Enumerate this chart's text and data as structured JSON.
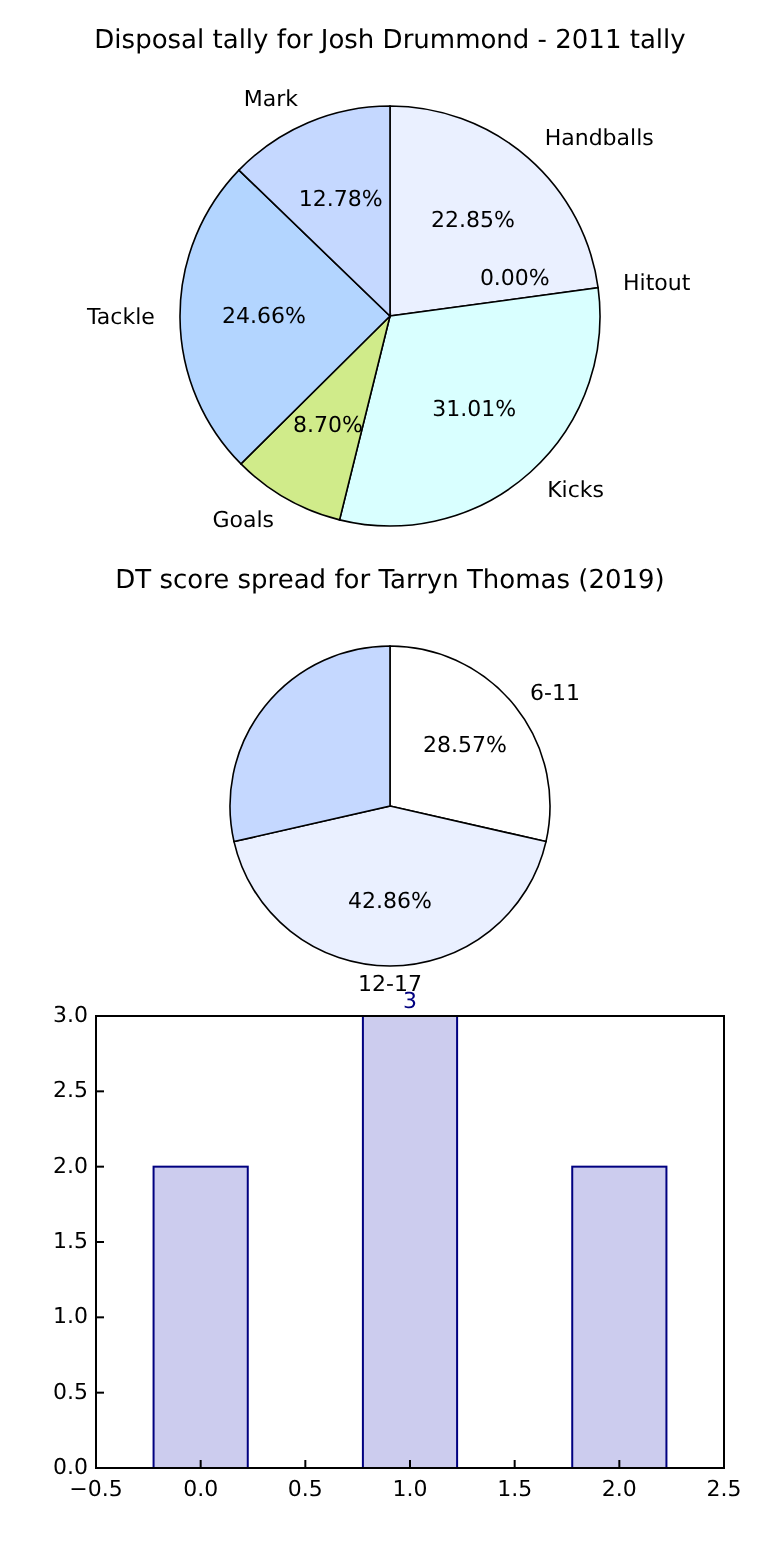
{
  "chart_data": [
    {
      "type": "pie",
      "title": "Disposal tally for Josh Drummond - 2011 tally",
      "categories": [
        "Handballs",
        "Hitout",
        "Kicks",
        "Goals",
        "Tackle",
        "Mark"
      ],
      "values": [
        22.85,
        0.0,
        31.01,
        8.7,
        24.66,
        12.78
      ],
      "colors": [
        "#eaf0ff",
        null,
        "#d9ffff",
        "#d0eb8a",
        "#b3d5ff",
        "#c5d8ff"
      ],
      "value_labels": [
        "22.85%",
        "0.00%",
        "31.01%",
        "8.70%",
        "24.66%",
        "12.78%"
      ]
    },
    {
      "type": "pie",
      "title": "DT score spread for Tarryn Thomas (2019)",
      "categories": [
        "6-11",
        "12-17",
        null
      ],
      "values": [
        28.57,
        42.86,
        28.57
      ],
      "colors": [
        "#ffffff",
        "#eaf0ff",
        "#c5d8ff"
      ],
      "value_labels": [
        "28.57%",
        "42.86%",
        null
      ]
    },
    {
      "type": "bar",
      "x": [
        0,
        1,
        2
      ],
      "values": [
        2,
        3,
        2
      ],
      "color": "#ccccee",
      "xlim": [
        -0.5,
        2.5
      ],
      "xticks": [
        {
          "value": -0.5,
          "label": "−0.5"
        },
        {
          "value": 0,
          "label": "0.0"
        },
        0.5,
        {
          "value": 1,
          "label": "1.0"
        },
        1.5,
        {
          "value": 2,
          "label": "2.0"
        },
        2.5
      ],
      "ylim": [
        0,
        3
      ],
      "yticks": [
        {
          "value": 0,
          "label": "0.0"
        },
        0.5,
        {
          "value": 1,
          "label": "1.0"
        },
        1.5,
        {
          "value": 2,
          "label": "2.0"
        },
        2.5,
        {
          "value": 3,
          "label": "3.0"
        }
      ],
      "value_labels": [
        null,
        "3",
        null
      ]
    }
  ]
}
